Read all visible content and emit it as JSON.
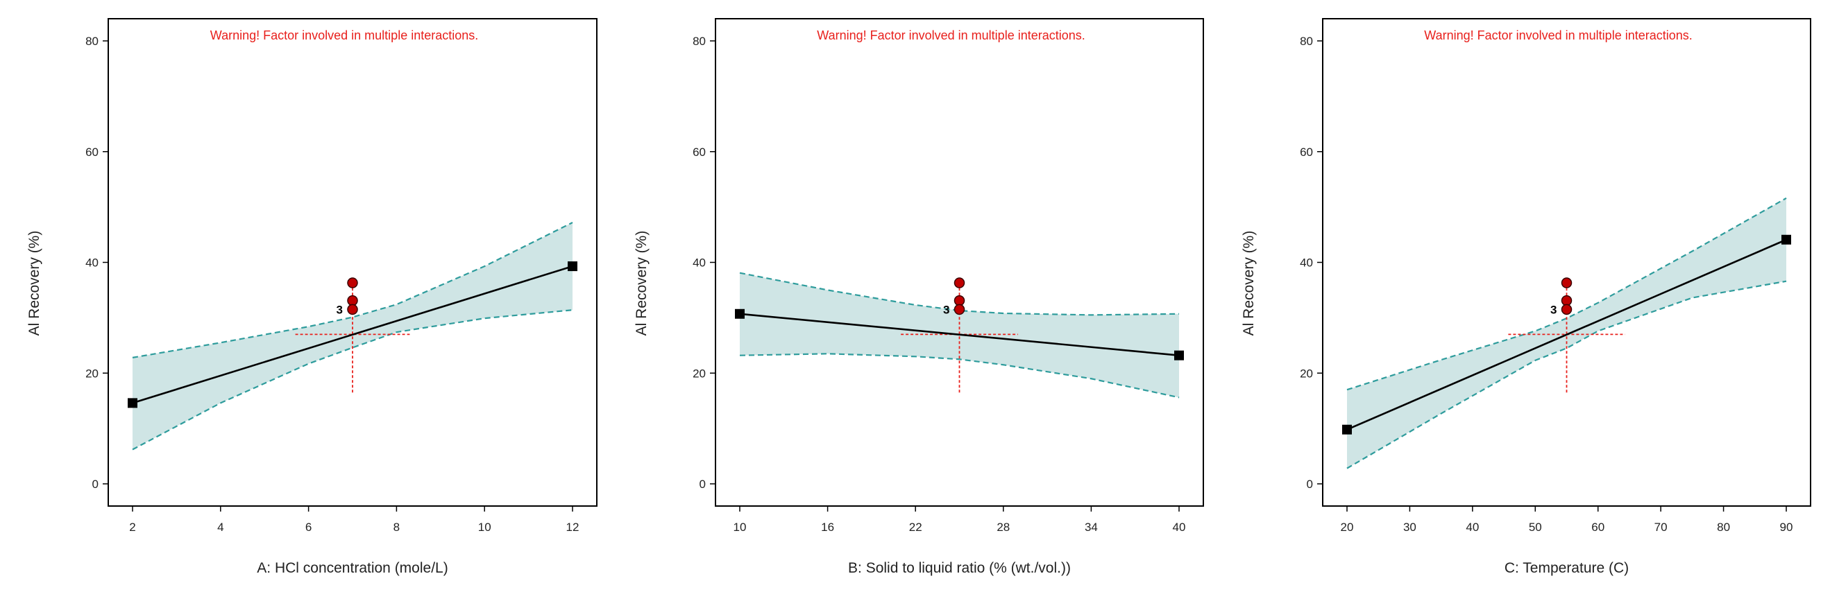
{
  "chart_data": [
    {
      "type": "line",
      "title": "",
      "warning": "Warning! Factor involved in multiple interactions.",
      "xlabel": "A: HCl concentration (mole/L)",
      "ylabel": "Al Recovery (%)",
      "xlim": [
        2,
        12
      ],
      "ylim": [
        0,
        80
      ],
      "x_ticks": [
        2,
        4,
        6,
        8,
        10,
        12
      ],
      "y_ticks": [
        0,
        20,
        40,
        60,
        80
      ],
      "line": {
        "x": [
          2,
          12
        ],
        "y": [
          14.6,
          39.3
        ]
      },
      "band_lower": {
        "x": [
          2,
          4,
          6,
          7,
          8,
          10,
          12
        ],
        "y": [
          6.2,
          14.6,
          21.7,
          24.6,
          27.4,
          29.9,
          31.4
        ]
      },
      "band_upper": {
        "x": [
          2,
          4,
          6,
          7,
          8,
          10,
          12
        ],
        "y": [
          22.8,
          25.5,
          28.4,
          30.1,
          32.4,
          39.3,
          47.2
        ]
      },
      "design_points": [
        {
          "x": 7,
          "y": 36.3
        },
        {
          "x": 7,
          "y": 33.1
        },
        {
          "x": 7,
          "y": 31.5
        }
      ],
      "design_point_label": "3",
      "center": {
        "x": 7,
        "y": 27.0
      },
      "center_crosshair": {
        "x_from": 5.7,
        "x_to": 8.3,
        "y_from": 16.5,
        "y_to": 37.5
      },
      "endpoint_markers": [
        {
          "x": 2,
          "y": 14.6
        },
        {
          "x": 12,
          "y": 39.3
        }
      ]
    },
    {
      "type": "line",
      "title": "",
      "warning": "Warning! Factor involved in multiple interactions.",
      "xlabel": "B: Solid to liquid ratio (% (wt./vol.))",
      "ylabel": "Al Recovery (%)",
      "xlim": [
        10,
        40
      ],
      "ylim": [
        0,
        80
      ],
      "x_ticks": [
        10,
        16,
        22,
        28,
        34,
        40
      ],
      "y_ticks": [
        0,
        20,
        40,
        60,
        80
      ],
      "line": {
        "x": [
          10,
          40
        ],
        "y": [
          30.7,
          23.2
        ]
      },
      "band_lower": {
        "x": [
          10,
          16,
          22,
          25,
          28,
          34,
          40
        ],
        "y": [
          23.2,
          23.5,
          23.0,
          22.5,
          21.5,
          19.0,
          15.6
        ]
      },
      "band_upper": {
        "x": [
          10,
          16,
          22,
          25,
          28,
          34,
          40
        ],
        "y": [
          38.1,
          35.0,
          32.3,
          31.3,
          30.8,
          30.5,
          30.7
        ]
      },
      "design_points": [
        {
          "x": 25,
          "y": 36.3
        },
        {
          "x": 25,
          "y": 33.1
        },
        {
          "x": 25,
          "y": 31.5
        }
      ],
      "design_point_label": "3",
      "center": {
        "x": 25,
        "y": 27.0
      },
      "center_crosshair": {
        "x_from": 21,
        "x_to": 29,
        "y_from": 16.5,
        "y_to": 37.5
      },
      "endpoint_markers": [
        {
          "x": 10,
          "y": 30.7
        },
        {
          "x": 40,
          "y": 23.2
        }
      ]
    },
    {
      "type": "line",
      "title": "",
      "warning": "Warning! Factor involved in multiple interactions.",
      "xlabel": "C: Temperature (C)",
      "ylabel": "Al Recovery (%)",
      "xlim": [
        20,
        90
      ],
      "ylim": [
        0,
        80
      ],
      "x_ticks": [
        20,
        30,
        40,
        50,
        60,
        70,
        80,
        90
      ],
      "y_ticks": [
        0,
        20,
        40,
        60,
        80
      ],
      "line": {
        "x": [
          20,
          90
        ],
        "y": [
          9.8,
          44.1
        ]
      },
      "band_lower": {
        "x": [
          20,
          35,
          50,
          55,
          60,
          75,
          90
        ],
        "y": [
          2.8,
          12.7,
          22.3,
          24.5,
          27.6,
          33.6,
          36.6
        ]
      },
      "band_upper": {
        "x": [
          20,
          35,
          50,
          55,
          60,
          75,
          90
        ],
        "y": [
          17.0,
          22.4,
          27.6,
          29.9,
          32.7,
          42.0,
          51.6
        ]
      },
      "design_points": [
        {
          "x": 55,
          "y": 36.3
        },
        {
          "x": 55,
          "y": 33.1
        },
        {
          "x": 55,
          "y": 31.5
        }
      ],
      "design_point_label": "3",
      "center": {
        "x": 55,
        "y": 27.0
      },
      "center_crosshair": {
        "x_from": 45.7,
        "x_to": 64.3,
        "y_from": 16.5,
        "y_to": 37.5
      },
      "endpoint_markers": [
        {
          "x": 20,
          "y": 9.8
        },
        {
          "x": 90,
          "y": 44.1
        }
      ]
    }
  ],
  "colors": {
    "band_fill": "#cfe5e5",
    "band_edge": "#2e9c9c",
    "line": "#000000",
    "warning": "#e8201c",
    "point_fill": "#c00000",
    "point_edge": "#3a0000",
    "crosshair": "#e8201c",
    "axis": "#000000",
    "text": "#222222"
  }
}
